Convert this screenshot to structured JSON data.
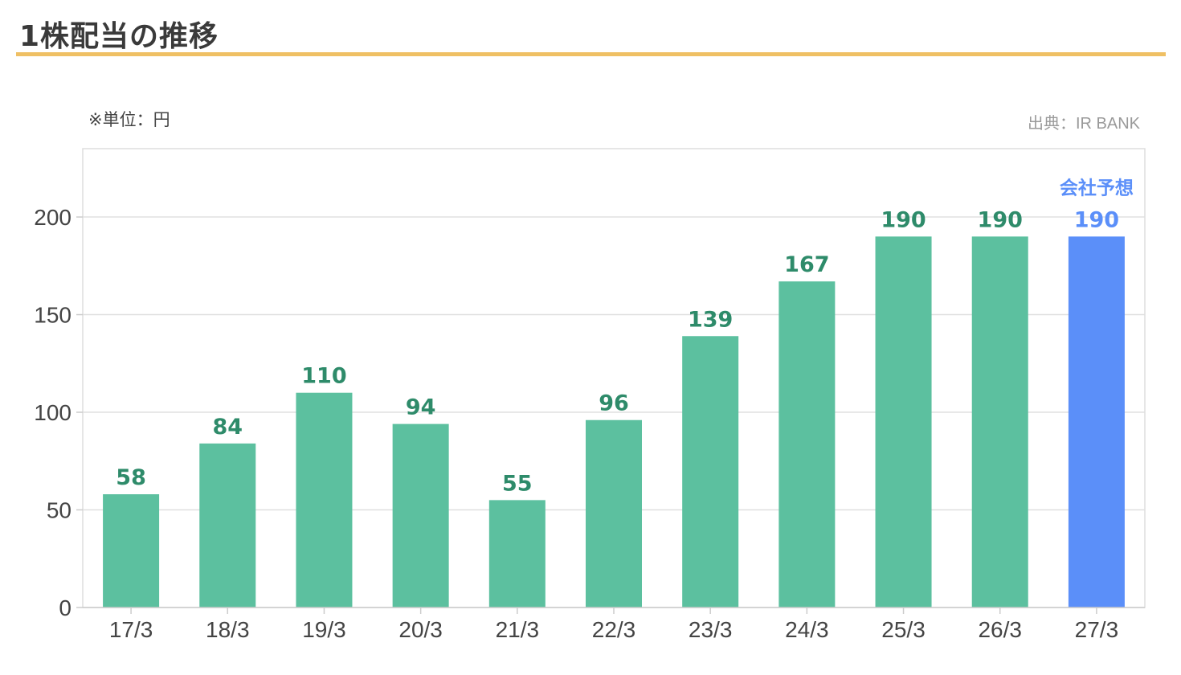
{
  "page": {
    "title": "1株配当の推移"
  },
  "notes": {
    "unit": "※単位：円",
    "source": "出典：IR BANK"
  },
  "colors": {
    "actual": "#5cc09f",
    "actual_label": "#2e8b6a",
    "forecast": "#5b8ff9",
    "title_rule": "#efc064"
  },
  "chart_data": {
    "type": "bar",
    "title": "",
    "xlabel": "",
    "ylabel": "",
    "categories": [
      "17/3",
      "18/3",
      "19/3",
      "20/3",
      "21/3",
      "22/3",
      "23/3",
      "24/3",
      "25/3",
      "26/3",
      "27/3"
    ],
    "values": [
      58,
      84,
      110,
      94,
      55,
      96,
      139,
      167,
      190,
      190,
      190
    ],
    "forecast_index": 10,
    "forecast_label": "会社予想",
    "ylim": [
      0,
      235
    ],
    "yticks": [
      0,
      50,
      100,
      150,
      200
    ],
    "grid": true
  }
}
